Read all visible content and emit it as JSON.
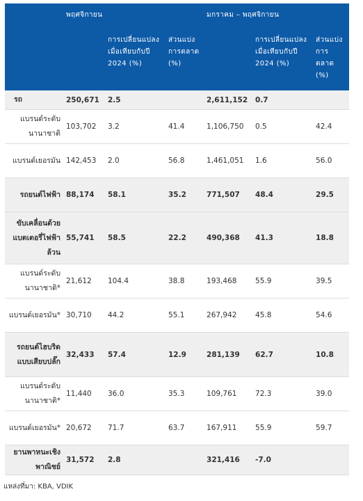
{
  "header": {
    "period1": "พฤศจิกายน",
    "period2": "มกราคม – พฤศจิกายน",
    "change_label": "การเปลี่ยนแปลงเมื่อเทียบกับปี 2024 (%)",
    "share_label": "ส่วนแบ่งการตลาด (%)"
  },
  "rows": [
    {
      "label": "รถ",
      "nov": "250,671",
      "nov_change": "2.5",
      "nov_share": "",
      "ytd": "2,611,152",
      "ytd_change": "0.7",
      "ytd_share": ""
    },
    {
      "label": "แบรนด์ระดับนานาชาติ",
      "nov": "103,702",
      "nov_change": "3.2",
      "nov_share": "41.4",
      "ytd": "1,106,750",
      "ytd_change": "0.5",
      "ytd_share": "42.4"
    },
    {
      "label": "แบรนด์เยอรมัน",
      "nov": "142,453",
      "nov_change": "2.0",
      "nov_share": "56.8",
      "ytd": "1,461,051",
      "ytd_change": "1.6",
      "ytd_share": "56.0"
    },
    {
      "label": "รถยนต์ไฟฟ้า",
      "nov": "88,174",
      "nov_change": "58.1",
      "nov_share": "35.2",
      "ytd": "771,507",
      "ytd_change": "48.4",
      "ytd_share": "29.5"
    },
    {
      "label": "ขับเคลื่อนด้วยแบตเตอรี่ไฟฟ้าล้วน",
      "nov": "55,741",
      "nov_change": "58.5",
      "nov_share": "22.2",
      "ytd": "490,368",
      "ytd_change": "41.3",
      "ytd_share": "18.8"
    },
    {
      "label": "แบรนด์ระดับนานาชาติ*",
      "nov": "21,612",
      "nov_change": "104.4",
      "nov_share": "38.8",
      "ytd": "193,468",
      "ytd_change": "55.9",
      "ytd_share": "39.5"
    },
    {
      "label": "แบรนด์เยอรมัน*",
      "nov": "30,710",
      "nov_change": "44.2",
      "nov_share": "55.1",
      "ytd": "267,942",
      "ytd_change": "45.8",
      "ytd_share": "54.6"
    },
    {
      "label": "รถยนต์ไฮบริดแบบเสียบปลั๊ก",
      "nov": "32,433",
      "nov_change": "57.4",
      "nov_share": "12.9",
      "ytd": "281,139",
      "ytd_change": "62.7",
      "ytd_share": "10.8"
    },
    {
      "label": "แบรนด์ระดับนานาชาติ*",
      "nov": "11,440",
      "nov_change": "36.0",
      "nov_share": "35.3",
      "ytd": "109,761",
      "ytd_change": "72.3",
      "ytd_share": "39.0"
    },
    {
      "label": "แบรนด์เยอรมัน*",
      "nov": "20,672",
      "nov_change": "71.7",
      "nov_share": "63.7",
      "ytd": "167,911",
      "ytd_change": "55.9",
      "ytd_share": "59.7"
    },
    {
      "label": "ยานพาหนะเชิงพาณิชย์",
      "nov": "31,572",
      "nov_change": "2.8",
      "nov_share": "",
      "ytd": "321,416",
      "ytd_change": "-7.0",
      "ytd_share": ""
    }
  ],
  "source": "แหล่งที่มา: KBA, VDIK",
  "colors": {
    "header_bg": "#0d5aa7",
    "shade": "#efefef",
    "border": "#dcdcdc"
  }
}
